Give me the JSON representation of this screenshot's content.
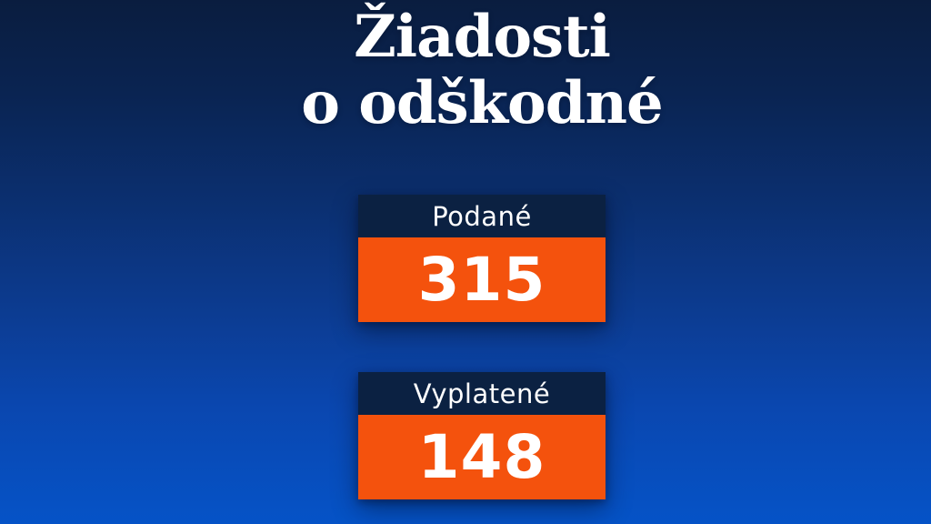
{
  "title": {
    "line1": "Žiadosti",
    "line2": "o odškodné"
  },
  "cards": [
    {
      "label": "Podané",
      "value": "315"
    },
    {
      "label": "Vyplatené",
      "value": "148"
    }
  ],
  "colors": {
    "background_top": "#0a1d3f",
    "background_bottom": "#0553c7",
    "card_header_navy": "#0b2142",
    "card_value_orange": "#f4520d",
    "text_white": "#ffffff"
  },
  "chart_data": {
    "type": "table",
    "title": "Žiadosti o odškodné",
    "categories": [
      "Podané",
      "Vyplatené"
    ],
    "values": [
      315,
      148
    ],
    "xlabel": "",
    "ylabel": "",
    "legend_position": "none",
    "grid": false
  }
}
